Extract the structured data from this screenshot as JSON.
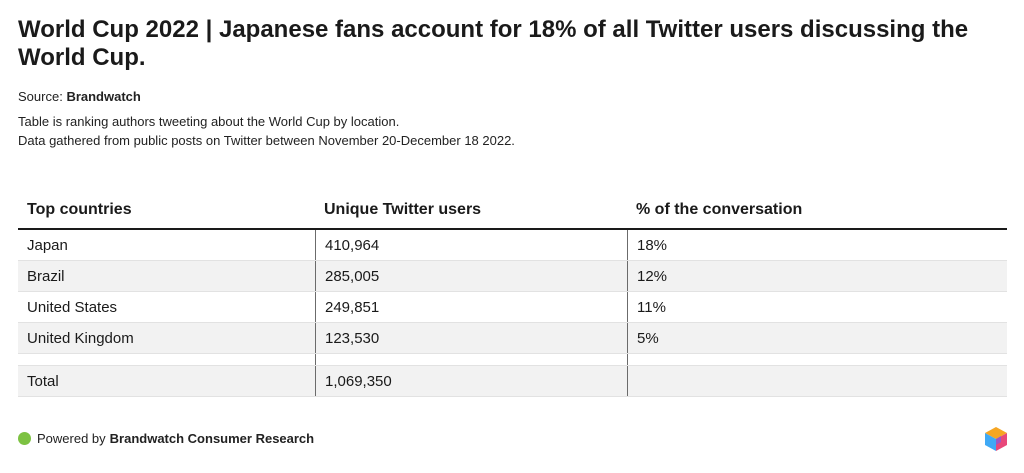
{
  "header": {
    "title": "World Cup 2022 | Japanese fans account for 18% of all Twitter users discussing the World Cup.",
    "source_label": "Source:",
    "source_name": "Brandwatch",
    "description_line1": "Table is ranking authors tweeting about the World Cup by location.",
    "description_line2": "Data gathered from public posts on Twitter between November 20-December 18 2022."
  },
  "chart_data": {
    "type": "table",
    "columns": [
      "Top countries",
      "Unique Twitter users",
      "% of the conversation"
    ],
    "rows": [
      {
        "country": "Japan",
        "users": "410,964",
        "percent": "18%"
      },
      {
        "country": "Brazil",
        "users": "285,005",
        "percent": "12%"
      },
      {
        "country": "United States",
        "users": "249,851",
        "percent": "11%"
      },
      {
        "country": "United Kingdom",
        "users": "123,530",
        "percent": "5%"
      }
    ],
    "total": {
      "label": "Total",
      "users": "1,069,350",
      "percent": ""
    }
  },
  "footer": {
    "powered_by": "Powered by",
    "brand": "Brandwatch Consumer Research"
  },
  "colors": {
    "accent_dot": "#7dc242",
    "stripe": "#f2f2f2"
  },
  "icons": {
    "logo": "brandwatch-cube-icon"
  }
}
